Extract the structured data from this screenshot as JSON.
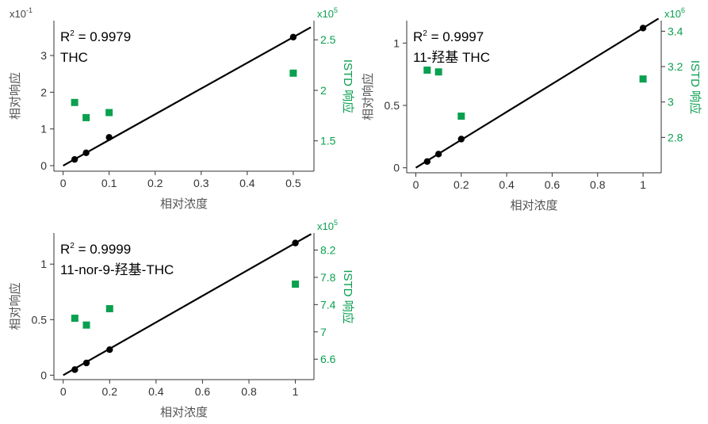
{
  "colors": {
    "calibration": "#000000",
    "istd": "#0aa04f",
    "axis": "#333333"
  },
  "chart_data": [
    {
      "type": "scatter",
      "xlabel": "相对浓度",
      "ylabel": "相对响应",
      "y2label": "ISTD 响应",
      "y_multiplier": "x10",
      "y_multiplier_exp": "-1",
      "y2_multiplier": "x10",
      "y2_multiplier_exp": "5",
      "r2_prefix": "R",
      "r2_sup": "2",
      "r2_value": " = 0.9979",
      "compound": "THC",
      "xlim": [
        -0.02,
        0.545
      ],
      "ylim": [
        -0.15,
        3.95
      ],
      "y2lim": [
        1.2,
        2.69
      ],
      "xticks": [
        "0",
        "0.1",
        "0.2",
        "0.3",
        "0.4",
        "0.5"
      ],
      "xtick_values": [
        0,
        0.1,
        0.2,
        0.3,
        0.4,
        0.5
      ],
      "yticks": [
        "0",
        "1",
        "2",
        "3"
      ],
      "ytick_values": [
        0,
        1,
        2,
        3
      ],
      "y2ticks": [
        "1.5",
        "2",
        "2.5"
      ],
      "y2tick_values": [
        1.5,
        2.0,
        2.5
      ],
      "fit_line": {
        "x": [
          0,
          0.5
        ],
        "y": [
          0,
          3.5
        ]
      },
      "series": [
        {
          "name": "",
          "kind": "calibration",
          "x": [
            0.025,
            0.05,
            0.1,
            0.5
          ],
          "y": [
            0.17,
            0.35,
            0.77,
            3.5
          ]
        },
        {
          "name": "",
          "kind": "istd",
          "x": [
            0.025,
            0.05,
            0.1,
            0.5
          ],
          "y": [
            1.88,
            1.73,
            1.78,
            2.17
          ]
        }
      ]
    },
    {
      "type": "scatter",
      "xlabel": "相对浓度",
      "ylabel": "相对响应",
      "y2label": "ISTD 响应",
      "y_multiplier": "",
      "y_multiplier_exp": "",
      "y2_multiplier": "x10",
      "y2_multiplier_exp": "6",
      "r2_prefix": "R",
      "r2_sup": "2",
      "r2_value": " = 0.9997",
      "compound": "11-羟基 THC",
      "xlim": [
        -0.04,
        1.08
      ],
      "ylim": [
        -0.04,
        1.18
      ],
      "y2lim": [
        2.6,
        3.46
      ],
      "xticks": [
        "0",
        "0.2",
        "0.4",
        "0.6",
        "0.8",
        "1"
      ],
      "xtick_values": [
        0,
        0.2,
        0.4,
        0.6,
        0.8,
        1
      ],
      "yticks": [
        "0",
        "0.5",
        "1"
      ],
      "ytick_values": [
        0,
        0.5,
        1
      ],
      "y2ticks": [
        "2.8",
        "3",
        "3.2",
        "3.4"
      ],
      "y2tick_values": [
        2.8,
        3.0,
        3.2,
        3.4
      ],
      "fit_line": {
        "x": [
          0,
          1
        ],
        "y": [
          0,
          1.12
        ]
      },
      "series": [
        {
          "name": "",
          "kind": "calibration",
          "x": [
            0.05,
            0.1,
            0.2,
            1
          ],
          "y": [
            0.05,
            0.11,
            0.23,
            1.12
          ]
        },
        {
          "name": "",
          "kind": "istd",
          "x": [
            0.05,
            0.1,
            0.2,
            1
          ],
          "y": [
            3.18,
            3.17,
            2.92,
            3.13
          ]
        }
      ]
    },
    {
      "type": "scatter",
      "xlabel": "相对浓度",
      "ylabel": "相对响应",
      "y2label": "ISTD 响应",
      "y_multiplier": "",
      "y_multiplier_exp": "",
      "y2_multiplier": "x10",
      "y2_multiplier_exp": "5",
      "r2_prefix": "R",
      "r2_sup": "2",
      "r2_value": " = 0.9999",
      "compound": "11-nor-9-羟基-THC",
      "xlim": [
        -0.04,
        1.08
      ],
      "ylim": [
        -0.04,
        1.28
      ],
      "y2lim": [
        6.3,
        8.45
      ],
      "xticks": [
        "0",
        "0.2",
        "0.4",
        "0.6",
        "0.8",
        "1"
      ],
      "xtick_values": [
        0,
        0.2,
        0.4,
        0.6,
        0.8,
        1
      ],
      "yticks": [
        "0",
        "0.5",
        "1"
      ],
      "ytick_values": [
        0,
        0.5,
        1
      ],
      "y2ticks": [
        "6.6",
        "7",
        "7.4",
        "7.8",
        "8.2"
      ],
      "y2tick_values": [
        6.6,
        7.0,
        7.4,
        7.8,
        8.2
      ],
      "fit_line": {
        "x": [
          0,
          1
        ],
        "y": [
          0,
          1.19
        ]
      },
      "series": [
        {
          "name": "",
          "kind": "calibration",
          "x": [
            0.05,
            0.1,
            0.2,
            1
          ],
          "y": [
            0.05,
            0.11,
            0.23,
            1.19
          ]
        },
        {
          "name": "",
          "kind": "istd",
          "x": [
            0.05,
            0.1,
            0.2,
            1
          ],
          "y": [
            7.2,
            7.1,
            7.34,
            7.7
          ]
        }
      ]
    }
  ]
}
